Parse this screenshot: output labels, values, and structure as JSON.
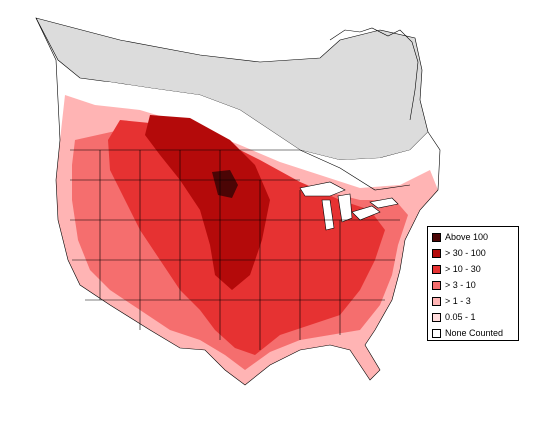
{
  "colors": {
    "background": "#ffffff",
    "uncovered": "#dcdcdc",
    "none_counted": "#ffffff",
    "level_0_05_1": "#ffdcdc",
    "level_1_3": "#ffb4b4",
    "level_3_10": "#f56e6e",
    "level_10_30": "#e63232",
    "level_30_100": "#b40a0a",
    "level_above_100": "#4b0505",
    "border": "#000000",
    "water": "#ffffff"
  },
  "legend": {
    "items": [
      {
        "label": "Above 100",
        "color": "#4b0505"
      },
      {
        "label": "> 30 - 100",
        "color": "#b40a0a"
      },
      {
        "label": "> 10 - 30",
        "color": "#e63232"
      },
      {
        "label": "> 3 - 10",
        "color": "#f56e6e"
      },
      {
        "label": "> 1 - 3",
        "color": "#ffb4b4"
      },
      {
        "label": "0.05 - 1",
        "color": "#ffdcdc"
      },
      {
        "label": "None Counted",
        "color": "#ffffff"
      }
    ]
  }
}
